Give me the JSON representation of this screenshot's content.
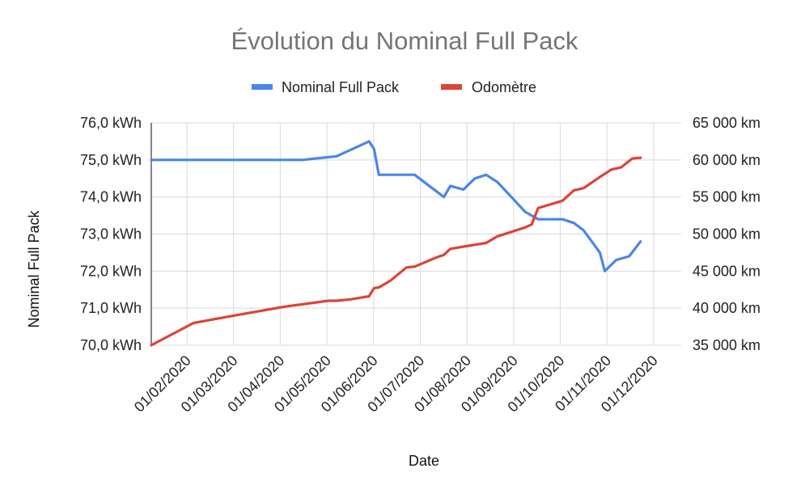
{
  "chart_data": {
    "type": "line",
    "title": "Évolution du Nominal Full Pack",
    "xlabel": "Date",
    "ylabel": "Nominal Full Pack",
    "ylabel_right": "",
    "y_unit_suffix": " kWh",
    "legend_position": "top",
    "grid": true,
    "x_ticks": [
      "01/02/2020",
      "01/03/2020",
      "01/04/2020",
      "01/05/2020",
      "01/06/2020",
      "01/07/2020",
      "01/08/2020",
      "01/09/2020",
      "01/10/2020",
      "01/11/2020",
      "01/12/2020"
    ],
    "x_range": [
      "2020-01-10",
      "2020-12-01"
    ],
    "y_left": {
      "range": [
        70,
        76
      ],
      "ticks": [
        "70,0 kWh",
        "71,0 kWh",
        "72,0 kWh",
        "73,0 kWh",
        "74,0 kWh",
        "75,0 kWh",
        "76,0 kWh"
      ]
    },
    "y_right": {
      "range": [
        35000,
        65000
      ],
      "ticks": [
        "35 000 km",
        "40 000 km",
        "45 000 km",
        "50 000 km",
        "55 000 km",
        "60 000 km",
        "65 000 km"
      ]
    },
    "series": [
      {
        "name": "Nominal Full Pack",
        "axis": "left",
        "color": "#4a86e8",
        "points": [
          [
            "2020-01-10",
            75.0
          ],
          [
            "2020-04-12",
            75.0
          ],
          [
            "2020-05-03",
            75.1
          ],
          [
            "2020-05-23",
            75.5
          ],
          [
            "2020-05-26",
            75.3
          ],
          [
            "2020-05-29",
            74.6
          ],
          [
            "2020-06-20",
            74.6
          ],
          [
            "2020-07-08",
            74.0
          ],
          [
            "2020-07-12",
            74.3
          ],
          [
            "2020-07-20",
            74.2
          ],
          [
            "2020-07-27",
            74.5
          ],
          [
            "2020-08-03",
            74.6
          ],
          [
            "2020-08-10",
            74.4
          ],
          [
            "2020-08-27",
            73.6
          ],
          [
            "2020-09-04",
            73.4
          ],
          [
            "2020-09-19",
            73.4
          ],
          [
            "2020-09-26",
            73.3
          ],
          [
            "2020-10-02",
            73.1
          ],
          [
            "2020-10-12",
            72.5
          ],
          [
            "2020-10-15",
            72.0
          ],
          [
            "2020-10-22",
            72.3
          ],
          [
            "2020-10-30",
            72.4
          ],
          [
            "2020-11-06",
            72.8
          ]
        ]
      },
      {
        "name": "Odomètre",
        "axis": "right",
        "color": "#db4437",
        "points": [
          [
            "2020-01-10",
            35000
          ],
          [
            "2020-02-05",
            38000
          ],
          [
            "2020-03-01",
            39000
          ],
          [
            "2020-04-01",
            40200
          ],
          [
            "2020-04-28",
            41000
          ],
          [
            "2020-05-03",
            41000
          ],
          [
            "2020-05-12",
            41200
          ],
          [
            "2020-05-23",
            41600
          ],
          [
            "2020-05-26",
            42700
          ],
          [
            "2020-05-29",
            42800
          ],
          [
            "2020-06-05",
            43700
          ],
          [
            "2020-06-15",
            45500
          ],
          [
            "2020-06-20",
            45600
          ],
          [
            "2020-07-03",
            46800
          ],
          [
            "2020-07-08",
            47200
          ],
          [
            "2020-07-12",
            48000
          ],
          [
            "2020-07-20",
            48300
          ],
          [
            "2020-08-03",
            48800
          ],
          [
            "2020-08-10",
            49700
          ],
          [
            "2020-08-27",
            50900
          ],
          [
            "2020-08-31",
            51300
          ],
          [
            "2020-09-04",
            53500
          ],
          [
            "2020-09-19",
            54500
          ],
          [
            "2020-09-26",
            55900
          ],
          [
            "2020-10-02",
            56200
          ],
          [
            "2020-10-12",
            57700
          ],
          [
            "2020-10-19",
            58700
          ],
          [
            "2020-10-25",
            59000
          ],
          [
            "2020-11-01",
            60200
          ],
          [
            "2020-11-06",
            60300
          ]
        ]
      }
    ]
  }
}
